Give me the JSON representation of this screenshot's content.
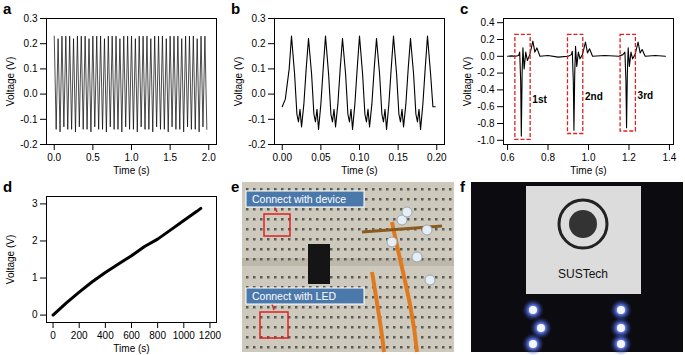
{
  "chart_data": [
    {
      "type": "line",
      "title": "a",
      "xlabel": "Time (s)",
      "ylabel": "Voltage (V)",
      "color": "#000000",
      "grid": false,
      "xlim": [
        -0.1,
        2.1
      ],
      "xticks": [
        {
          "value": 0,
          "label": "0.0"
        },
        0.5,
        {
          "value": 1,
          "label": "1.0"
        },
        1.5,
        {
          "value": 2,
          "label": "2.0"
        }
      ],
      "ylim": [
        -0.2,
        0.3
      ],
      "yticks": [
        -0.2,
        -0.1,
        {
          "value": 0,
          "label": "0.0"
        },
        0.1,
        0.2,
        0.3
      ],
      "x": [
        0,
        0.025,
        0.05,
        0.075,
        0.1,
        0.125,
        0.15,
        0.175,
        0.2,
        0.225,
        0.25,
        0.275,
        0.3,
        0.325,
        0.35,
        0.375,
        0.4,
        0.425,
        0.45,
        0.475,
        0.5,
        0.525,
        0.55,
        0.575,
        0.6,
        0.625,
        0.65,
        0.675,
        0.7,
        0.725,
        0.75,
        0.775,
        0.8,
        0.825,
        0.85,
        0.875,
        0.9,
        0.925,
        0.95,
        0.975,
        1,
        1.025,
        1.05,
        1.075,
        1.1,
        1.125,
        1.15,
        1.175,
        1.2,
        1.225,
        1.25,
        1.275,
        1.3,
        1.325,
        1.35,
        1.375,
        1.4,
        1.425,
        1.45,
        1.475,
        1.5,
        1.525,
        1.55,
        1.575,
        1.6,
        1.625,
        1.65,
        1.675,
        1.7,
        1.725,
        1.75,
        1.775,
        1.8,
        1.825,
        1.85,
        1.875,
        1.9,
        1.925,
        1.95,
        1.975
      ],
      "values": [
        0.23,
        -0.14,
        0.22,
        -0.15,
        0.23,
        -0.13,
        0.23,
        -0.14,
        0.23,
        -0.14,
        0.22,
        -0.15,
        0.23,
        -0.13,
        0.23,
        -0.14,
        0.23,
        -0.14,
        0.22,
        -0.15,
        0.23,
        -0.13,
        0.23,
        -0.14,
        0.23,
        -0.14,
        0.22,
        -0.15,
        0.23,
        -0.13,
        0.23,
        -0.14,
        0.23,
        -0.14,
        0.22,
        -0.15,
        0.23,
        -0.13,
        0.23,
        -0.14,
        0.23,
        -0.14,
        0.22,
        -0.15,
        0.23,
        -0.13,
        0.23,
        -0.14,
        0.23,
        -0.14,
        0.22,
        -0.15,
        0.23,
        -0.13,
        0.23,
        -0.14,
        0.23,
        -0.14,
        0.22,
        -0.15,
        0.23,
        -0.13,
        0.23,
        -0.14,
        0.23,
        -0.14,
        0.22,
        -0.15,
        0.23,
        -0.13,
        0.23,
        -0.14,
        0.23,
        -0.14,
        0.22,
        -0.15,
        0.23,
        -0.13,
        0.23,
        -0.14
      ]
    },
    {
      "type": "line",
      "title": "b",
      "xlabel": "Time (s)",
      "ylabel": "Voltage (V)",
      "color": "#000000",
      "grid": false,
      "xlim": [
        -0.01,
        0.21
      ],
      "xticks": [
        {
          "value": 0,
          "label": "0.00"
        },
        0.05,
        {
          "value": 0.1,
          "label": "0.10"
        },
        0.15,
        {
          "value": 0.2,
          "label": "0.20"
        }
      ],
      "ylim": [
        -0.2,
        0.3
      ],
      "yticks": [
        -0.2,
        -0.1,
        {
          "value": 0,
          "label": "0.0"
        },
        0.1,
        0.2,
        0.3
      ],
      "x": [
        0,
        0.004,
        0.009,
        0.012,
        0.016,
        0.019,
        0.021,
        0.023,
        0.025,
        0.028,
        0.031,
        0.034,
        0.038,
        0.041,
        0.043,
        0.045,
        0.047,
        0.05,
        0.053,
        0.056,
        0.06,
        0.063,
        0.065,
        0.067,
        0.069,
        0.072,
        0.075,
        0.078,
        0.082,
        0.085,
        0.087,
        0.089,
        0.091,
        0.094,
        0.097,
        0.1,
        0.104,
        0.107,
        0.109,
        0.111,
        0.113,
        0.116,
        0.119,
        0.122,
        0.126,
        0.129,
        0.131,
        0.133,
        0.135,
        0.138,
        0.141,
        0.144,
        0.148,
        0.151,
        0.153,
        0.155,
        0.157,
        0.16,
        0.163,
        0.166,
        0.17,
        0.173,
        0.175,
        0.177,
        0.179,
        0.182,
        0.185,
        0.188,
        0.192,
        0.195,
        0.198
      ],
      "values": [
        -0.05,
        -0.02,
        0.1,
        0.23,
        0.08,
        -0.08,
        -0.11,
        -0.06,
        -0.13,
        -0.04,
        0.1,
        0.22,
        0.08,
        -0.08,
        -0.11,
        -0.06,
        -0.14,
        -0.04,
        0.1,
        0.23,
        0.08,
        -0.08,
        -0.11,
        -0.06,
        -0.13,
        -0.04,
        0.1,
        0.22,
        0.08,
        -0.08,
        -0.11,
        -0.06,
        -0.14,
        -0.04,
        0.1,
        0.23,
        0.08,
        -0.08,
        -0.11,
        -0.06,
        -0.13,
        -0.04,
        0.1,
        0.22,
        0.08,
        -0.08,
        -0.11,
        -0.06,
        -0.14,
        -0.04,
        0.1,
        0.23,
        0.08,
        -0.08,
        -0.11,
        -0.06,
        -0.13,
        -0.04,
        0.1,
        0.22,
        0.08,
        -0.08,
        -0.11,
        -0.06,
        -0.14,
        -0.04,
        0.1,
        0.23,
        0.08,
        -0.05,
        -0.05
      ]
    },
    {
      "type": "line",
      "title": "c",
      "xlabel": "Time (s)",
      "ylabel": "Voltage (V)",
      "color": "#000000",
      "grid": false,
      "annotations": [
        "1st",
        "2nd",
        "3rd"
      ],
      "xlim": [
        0.58,
        1.42
      ],
      "xticks": [
        0.6,
        0.8,
        {
          "value": 1,
          "label": "1.0"
        },
        1.2,
        1.4
      ],
      "ylim": [
        -1.05,
        0.45
      ],
      "yticks": [
        {
          "value": -1,
          "label": "-1.0"
        },
        -0.8,
        -0.6,
        -0.4,
        -0.2,
        {
          "value": 0,
          "label": "0.0"
        },
        0.2,
        0.4
      ],
      "x": [
        0.6,
        0.62,
        0.64,
        0.655,
        0.66,
        0.665,
        0.668,
        0.672,
        0.676,
        0.682,
        0.69,
        0.698,
        0.71,
        0.725,
        0.735,
        0.745,
        0.76,
        0.8,
        0.85,
        0.9,
        0.915,
        0.92,
        0.925,
        0.928,
        0.932,
        0.936,
        0.942,
        0.95,
        0.958,
        0.97,
        0.985,
        0.995,
        1.005,
        1.02,
        1.08,
        1.15,
        1.17,
        1.18,
        1.185,
        1.188,
        1.192,
        1.196,
        1.202,
        1.21,
        1.218,
        1.23,
        1.245,
        1.255,
        1.265,
        1.28,
        1.33,
        1.38
      ],
      "values": [
        0,
        0.005,
        0,
        0.01,
        0.05,
        -0.3,
        -0.95,
        -0.2,
        0.1,
        -0.15,
        0.05,
        -0.05,
        0.02,
        0.18,
        0.05,
        0.1,
        0,
        0.01,
        -0.01,
        0,
        0.02,
        0.06,
        -0.3,
        -0.88,
        -0.2,
        0.12,
        -0.12,
        0.05,
        -0.03,
        0.02,
        0.17,
        0.04,
        0.09,
        0,
        0.01,
        0,
        0.02,
        0.05,
        -0.3,
        -0.85,
        -0.2,
        0.1,
        -0.12,
        0.05,
        -0.03,
        0.02,
        0.17,
        0.04,
        0.08,
        0,
        0.01,
        0
      ]
    },
    {
      "type": "line",
      "title": "d",
      "xlabel": "Time (s)",
      "ylabel": "Voltage (V)",
      "color": "#000000",
      "grid": false,
      "xlim": [
        -50,
        1250
      ],
      "xticks": [
        0,
        200,
        400,
        600,
        800,
        1000,
        1200
      ],
      "ylim": [
        -0.2,
        3.2
      ],
      "yticks": [
        0,
        1,
        2,
        3
      ],
      "x": [
        0,
        100,
        200,
        300,
        400,
        500,
        600,
        700,
        800,
        900,
        1000,
        1100,
        1130
      ],
      "values": [
        0,
        0.32,
        0.62,
        0.9,
        1.15,
        1.38,
        1.6,
        1.85,
        2.05,
        2.3,
        2.55,
        2.8,
        2.88
      ]
    }
  ],
  "photos": [
    {
      "title": "e",
      "annotations": [
        "Connect with device",
        "Connect with LED"
      ]
    },
    {
      "title": "f",
      "annotations": [
        "SUSTech"
      ]
    }
  ]
}
